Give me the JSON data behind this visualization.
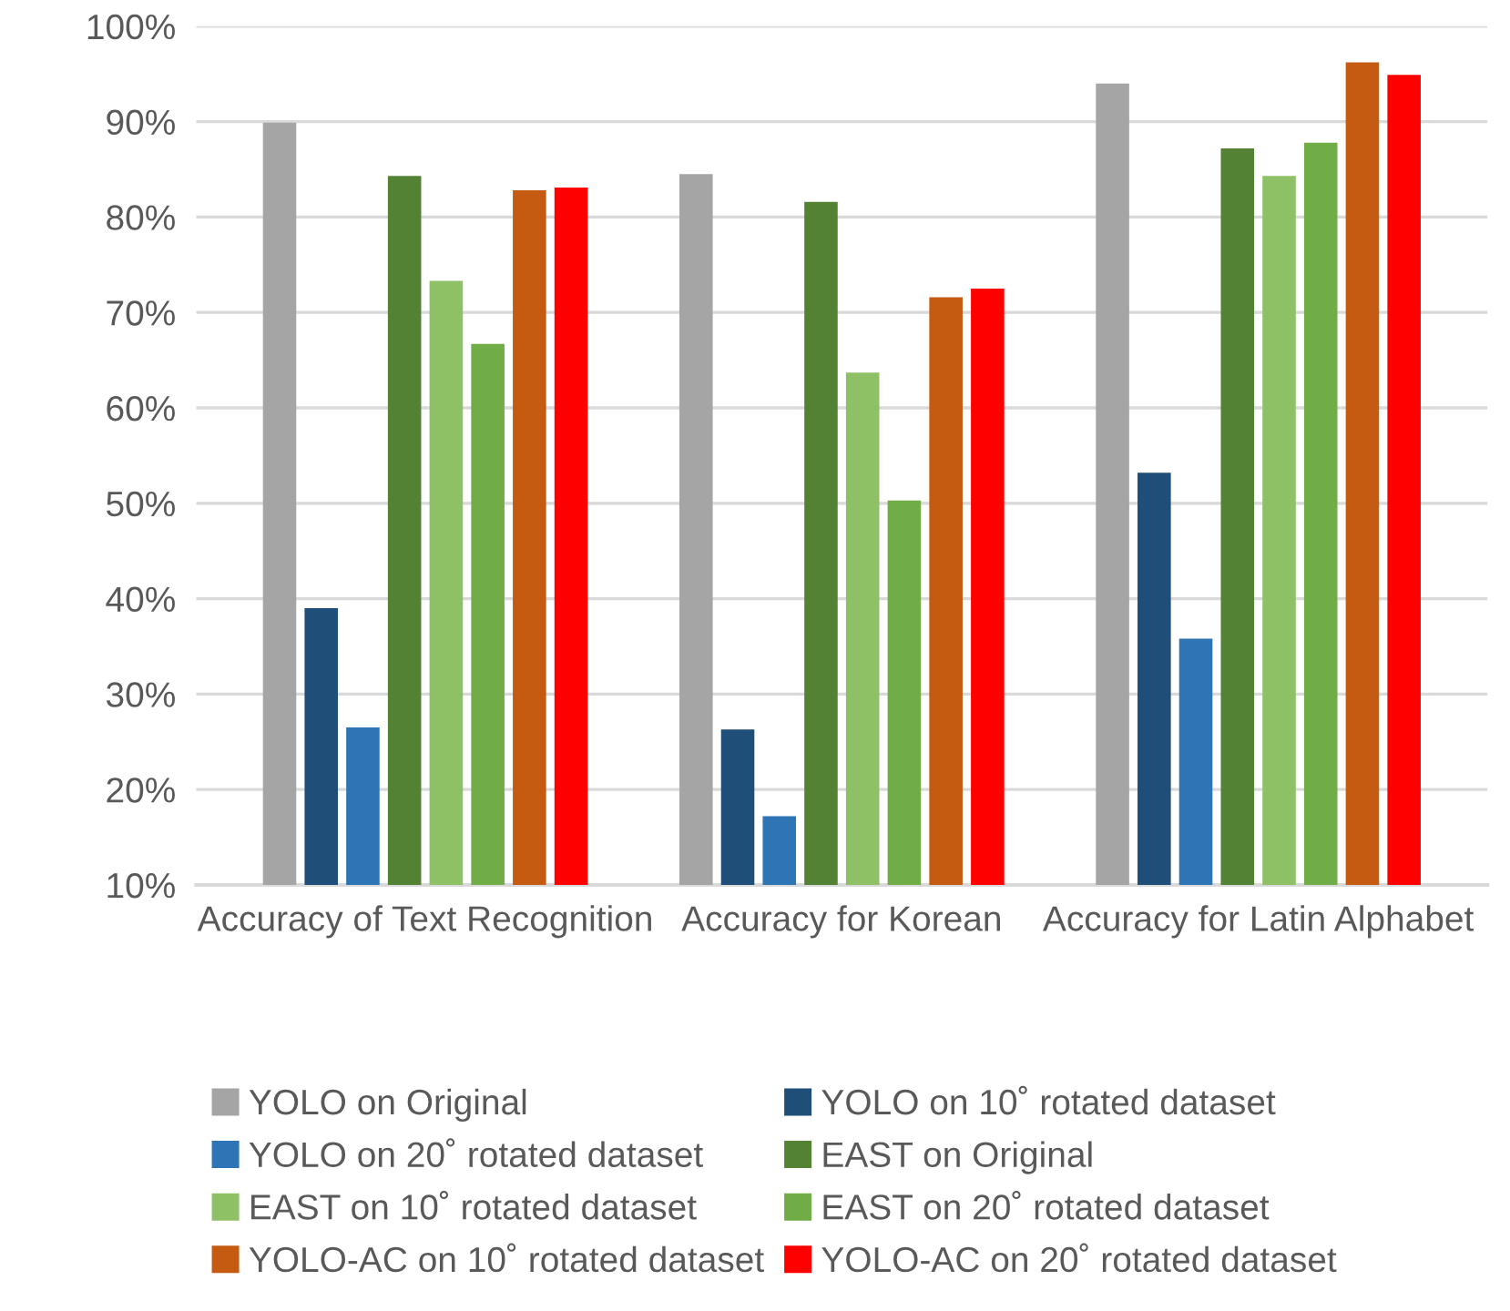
{
  "chart_data": {
    "type": "bar",
    "categories": [
      "Accuracy of Text Recognition",
      "Accuracy for Korean",
      "Accuracy for Latin Alphabet"
    ],
    "series": [
      {
        "name": "YOLO on Original",
        "color": "#a5a5a5",
        "values": [
          89.9,
          84.5,
          94.0
        ]
      },
      {
        "name": "YOLO on 10˚ rotated dataset",
        "color": "#1f4e79",
        "values": [
          39.0,
          26.3,
          53.2
        ]
      },
      {
        "name": "YOLO on 20˚ rotated dataset",
        "color": "#2e75b6",
        "values": [
          26.5,
          17.2,
          35.8
        ]
      },
      {
        "name": "EAST on Original",
        "color": "#548235",
        "values": [
          84.3,
          81.6,
          87.2
        ]
      },
      {
        "name": "EAST on 10˚ rotated dataset",
        "color": "#8ec165",
        "values": [
          73.3,
          63.7,
          84.3
        ]
      },
      {
        "name": "EAST on 20˚ rotated dataset",
        "color": "#70ad47",
        "values": [
          66.7,
          50.3,
          87.8
        ]
      },
      {
        "name": "YOLO-AC on 10˚ rotated dataset",
        "color": "#c55a11",
        "values": [
          82.8,
          71.6,
          96.2
        ]
      },
      {
        "name": "YOLO-AC on 20˚ rotated dataset",
        "color": "#ff0000",
        "values": [
          83.1,
          72.5,
          94.9
        ]
      }
    ],
    "ylim": [
      10,
      100
    ],
    "yticks": [
      {
        "value": 10,
        "label": "10%"
      },
      {
        "value": 20,
        "label": "20%"
      },
      {
        "value": 30,
        "label": "30%"
      },
      {
        "value": 40,
        "label": "40%"
      },
      {
        "value": 50,
        "label": "50%"
      },
      {
        "value": 60,
        "label": "60%"
      },
      {
        "value": 70,
        "label": "70%"
      },
      {
        "value": 80,
        "label": "80%"
      },
      {
        "value": 90,
        "label": "90%"
      },
      {
        "value": 100,
        "label": "100%"
      }
    ],
    "grid": "y",
    "legend": "bottom"
  }
}
